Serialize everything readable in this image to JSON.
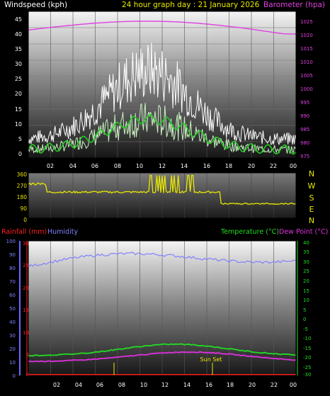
{
  "header": {
    "left": "Windspeed (kph)",
    "center": "24 hour graph day : 21 January 2026",
    "right": "Barometer (hpa)"
  },
  "wind": {
    "left_ticks": [
      "45",
      "40",
      "35",
      "30",
      "25",
      "20",
      "15",
      "10",
      "5",
      "0"
    ],
    "baro_ticks": [
      "1025",
      "1020",
      "1015",
      "1010",
      "1005",
      "1000",
      "995",
      "990",
      "985",
      "980",
      "975"
    ],
    "x_ticks": [
      "02",
      "04",
      "06",
      "08",
      "10",
      "12",
      "14",
      "16",
      "18",
      "20",
      "22",
      "00"
    ]
  },
  "direction": {
    "left_ticks": [
      "360",
      "270",
      "180",
      "90",
      "0"
    ],
    "compass": [
      "N",
      "W",
      "S",
      "E",
      "N"
    ]
  },
  "lower": {
    "rain_label": "Rainfall (mm)",
    "humidity_label": "Humidity",
    "temp_label": "Temperature (°C)",
    "dew_label": "Dew Point (°C)",
    "humidity_ticks": [
      "100",
      "90",
      "80",
      "70",
      "60",
      "50",
      "40",
      "30",
      "20",
      "10",
      "0"
    ],
    "rain_ticks": [
      "30",
      "25",
      "20",
      "15",
      "10",
      "5",
      "0"
    ],
    "temp_ticks": [
      "40",
      "35",
      "30",
      "25",
      "20",
      "15",
      "10",
      "5",
      "0",
      "-5",
      "-10",
      "-15",
      "-20",
      "-25",
      "-30"
    ],
    "x_ticks": [
      "02",
      "04",
      "06",
      "08",
      "10",
      "12",
      "14",
      "16",
      "18",
      "20",
      "22",
      "00"
    ],
    "sunset_label": "Sun Set"
  },
  "colors": {
    "wind_gust": "#ffffff",
    "wind_avg": "#c8f0c0",
    "wind_mean": "#22cc22",
    "barometer": "#e040e0",
    "direction": "#e8e800",
    "humidity": "#8080ff",
    "temperature": "#22dd22",
    "dewpoint": "#e030e0",
    "rain": "#ff2020"
  }
}
